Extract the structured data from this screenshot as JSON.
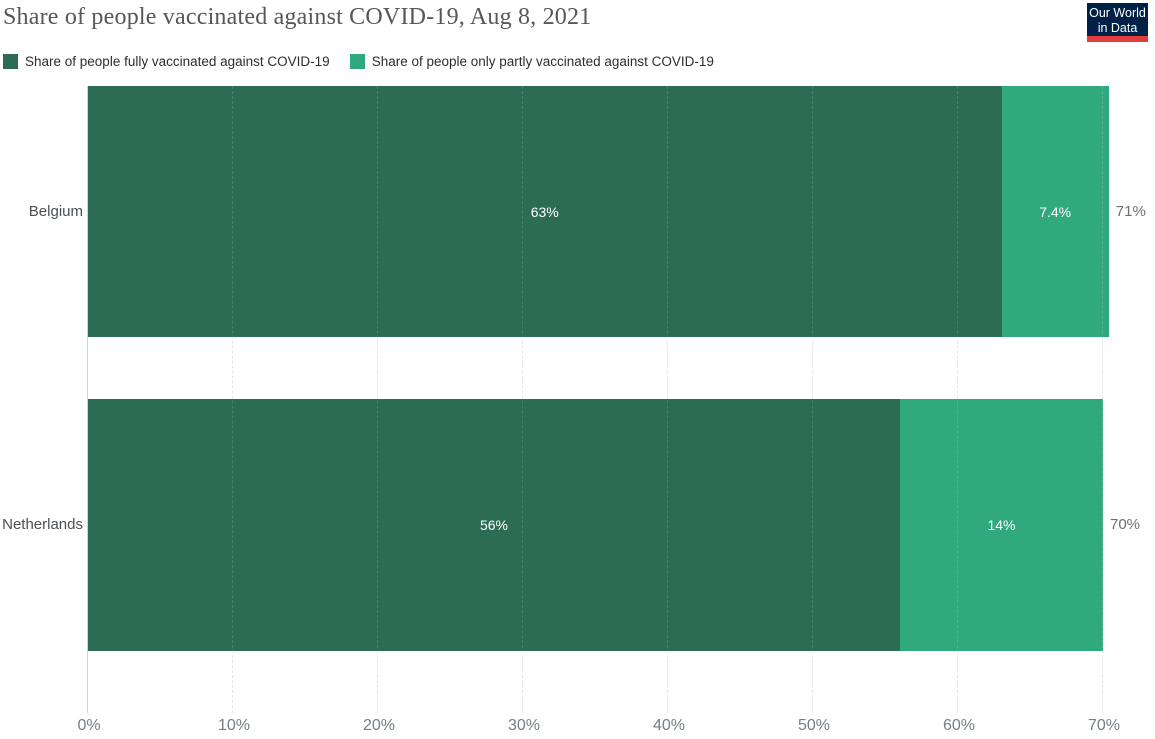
{
  "title": "Share of people vaccinated against COVID-19, Aug 8, 2021",
  "logo": {
    "line1": "Our World",
    "line2": "in Data",
    "bg_color": "#002147",
    "accent_color": "#e23d3d"
  },
  "legend": [
    {
      "label": "Share of people fully vaccinated against COVID-19",
      "color": "#2c6c55"
    },
    {
      "label": "Share of people only partly vaccinated against COVID-19",
      "color": "#31a97e"
    }
  ],
  "chart_data": {
    "type": "bar",
    "orientation": "horizontal",
    "stacked": true,
    "title": "Share of people vaccinated against COVID-19, Aug 8, 2021",
    "categories": [
      "Belgium",
      "Netherlands"
    ],
    "series": [
      {
        "name": "Share of people fully vaccinated against COVID-19",
        "color": "#2c6c55",
        "values": [
          63,
          56
        ],
        "value_labels": [
          "63%",
          "56%"
        ]
      },
      {
        "name": "Share of people only partly vaccinated against COVID-19",
        "color": "#31a97e",
        "values": [
          7.4,
          14
        ],
        "value_labels": [
          "7.4%",
          "14%"
        ]
      }
    ],
    "totals": [
      "71%",
      "70%"
    ],
    "total_values": [
      71,
      70
    ],
    "x_ticks": [
      "0%",
      "10%",
      "20%",
      "30%",
      "40%",
      "50%",
      "60%",
      "70%"
    ],
    "x_tick_values": [
      0,
      10,
      20,
      30,
      40,
      50,
      60,
      70
    ],
    "xlim": [
      0,
      70
    ],
    "grid": "dashed-vertical",
    "legend_position": "top"
  }
}
